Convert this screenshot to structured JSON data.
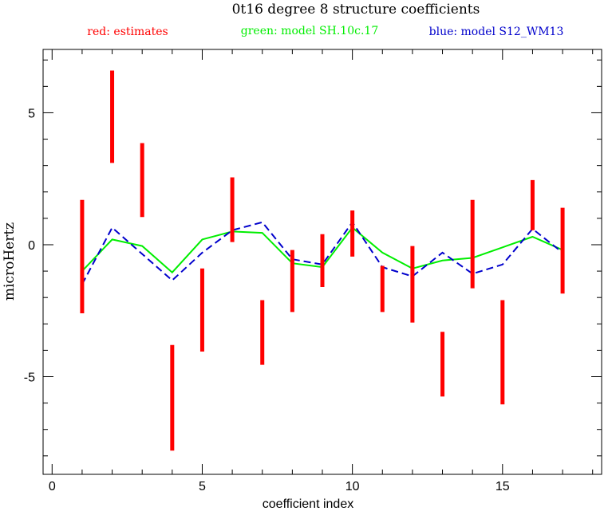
{
  "chart_data": {
    "type": "errorbar",
    "title": "0t16 degree 8 structure coefficients",
    "legend": [
      {
        "label": "red: estimates",
        "color": "#ff0000"
      },
      {
        "label": "green: model SH.10c.17",
        "color": "#00ee00"
      },
      {
        "label": "blue: model S12_WM13",
        "color": "#0000cc"
      }
    ],
    "xlabel": "coefficient index",
    "ylabel": "microHertz",
    "xlim": [
      -0.3,
      18.3
    ],
    "ylim": [
      -8.7,
      7.4
    ],
    "xticks_major": [
      0,
      5,
      10,
      15
    ],
    "xtick_labels": [
      "0",
      "5",
      "10",
      "15"
    ],
    "yticks_major": [
      -5,
      0,
      5
    ],
    "ytick_labels": [
      "-5",
      "0",
      "5"
    ],
    "estimates": {
      "name": "estimates",
      "color": "#ff0000",
      "x": [
        1,
        2,
        3,
        4,
        5,
        6,
        7,
        8,
        9,
        10,
        11,
        12,
        13,
        14,
        15,
        16,
        17
      ],
      "low": [
        -2.6,
        3.1,
        1.05,
        -7.8,
        -4.05,
        0.1,
        -4.55,
        -2.55,
        -1.6,
        -0.45,
        -2.55,
        -2.95,
        -5.75,
        -1.65,
        -6.05,
        0.55,
        -1.85
      ],
      "high": [
        1.7,
        6.6,
        3.85,
        -3.8,
        -0.9,
        2.55,
        -2.1,
        -0.2,
        0.4,
        1.3,
        -0.8,
        -0.05,
        -3.3,
        1.7,
        -2.1,
        2.45,
        1.4
      ]
    },
    "series": [
      {
        "name": "model SH.10c.17",
        "color": "#00ee00",
        "style": "solid",
        "x": [
          1,
          2,
          3,
          4,
          5,
          6,
          7,
          8,
          9,
          10,
          11,
          12,
          13,
          14,
          15,
          16,
          17
        ],
        "y": [
          -1.0,
          0.2,
          -0.05,
          -1.05,
          0.2,
          0.5,
          0.45,
          -0.7,
          -0.85,
          0.65,
          -0.3,
          -0.9,
          -0.6,
          -0.5,
          -0.1,
          0.3,
          -0.2
        ]
      },
      {
        "name": "model S12_WM13",
        "color": "#0000cc",
        "style": "dashed",
        "x": [
          1,
          2,
          3,
          4,
          5,
          6,
          7,
          8,
          9,
          10,
          11,
          12,
          13,
          14,
          15,
          16,
          17
        ],
        "y": [
          -1.5,
          0.65,
          -0.35,
          -1.35,
          -0.3,
          0.55,
          0.85,
          -0.55,
          -0.75,
          0.85,
          -0.85,
          -1.2,
          -0.3,
          -1.1,
          -0.75,
          0.6,
          -0.3
        ]
      }
    ],
    "grid": false,
    "legend_position": "top"
  }
}
